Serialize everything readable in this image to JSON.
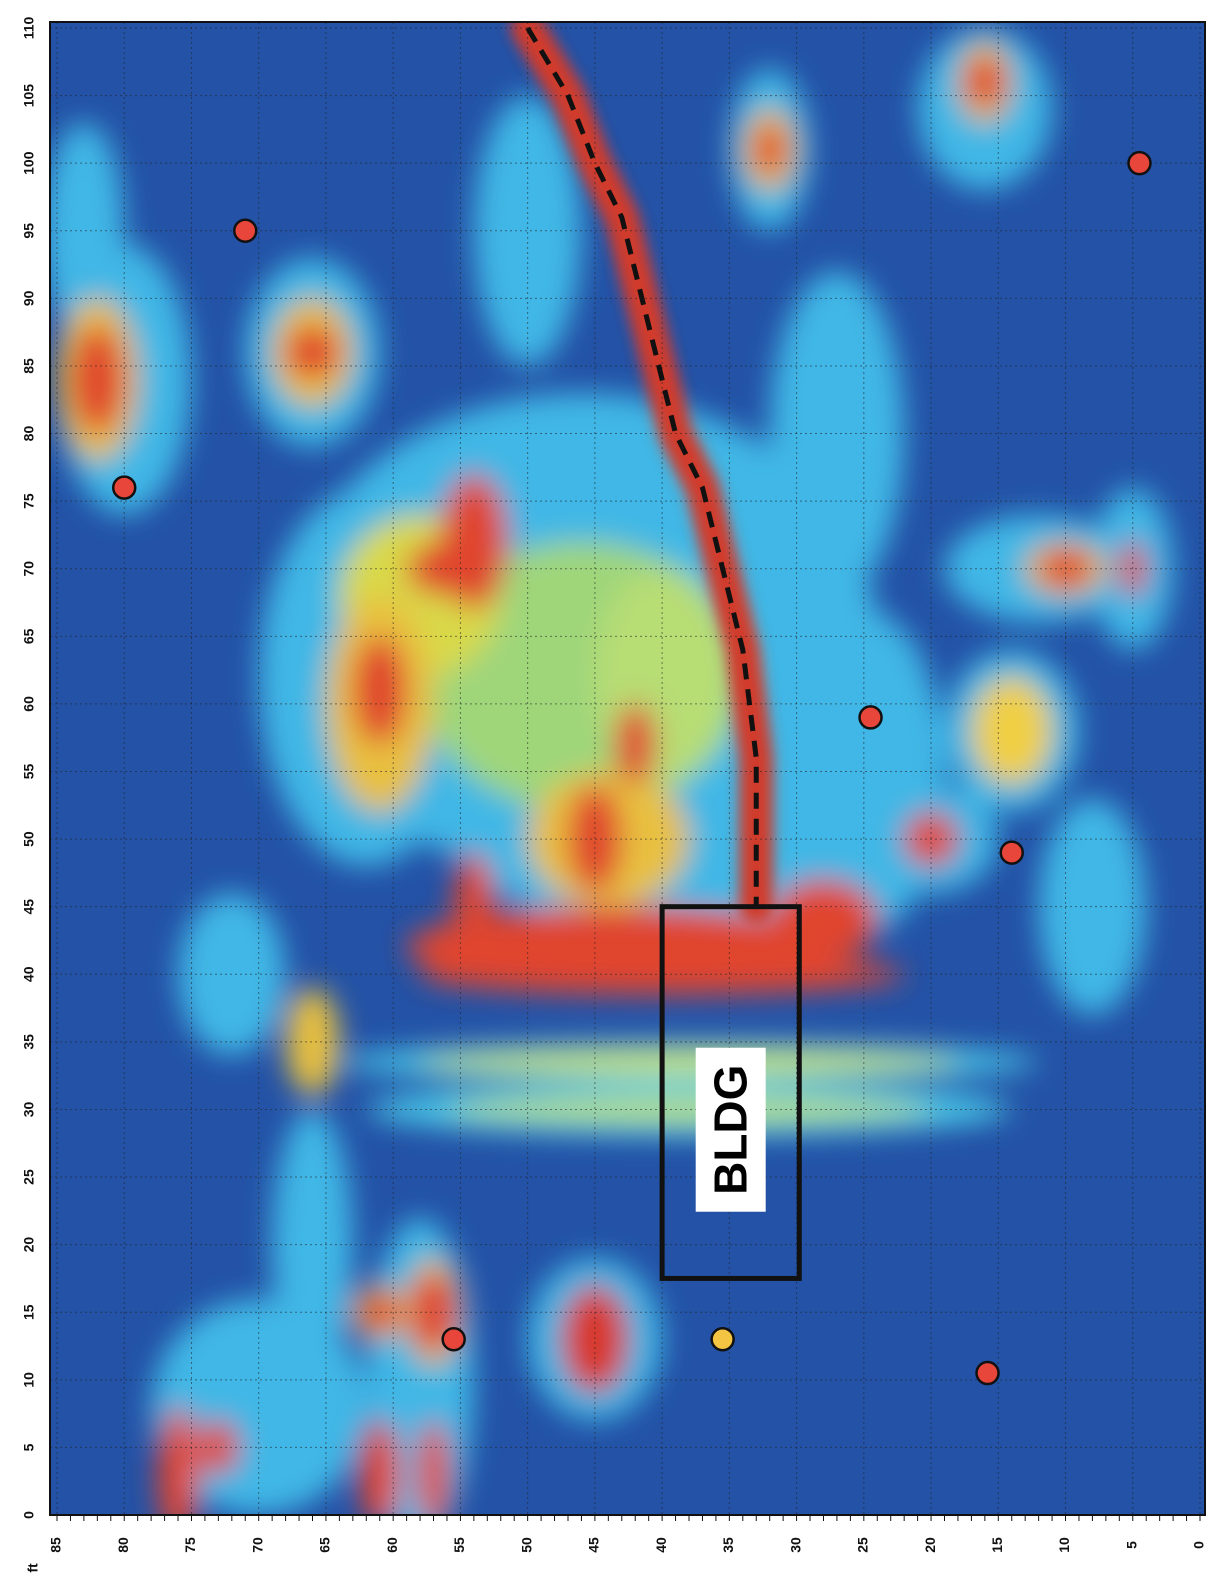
{
  "axes": {
    "unit": "ft",
    "y_ticks": [
      0,
      5,
      10,
      15,
      20,
      25,
      30,
      35,
      40,
      45,
      50,
      55,
      60,
      65,
      70,
      75,
      80,
      85,
      90,
      95,
      100,
      105,
      110
    ],
    "x_ticks": [
      85,
      80,
      75,
      70,
      65,
      60,
      55,
      50,
      45,
      40,
      35,
      30,
      25,
      20,
      15,
      10,
      5,
      0
    ]
  },
  "building_label": "BLDG"
}
